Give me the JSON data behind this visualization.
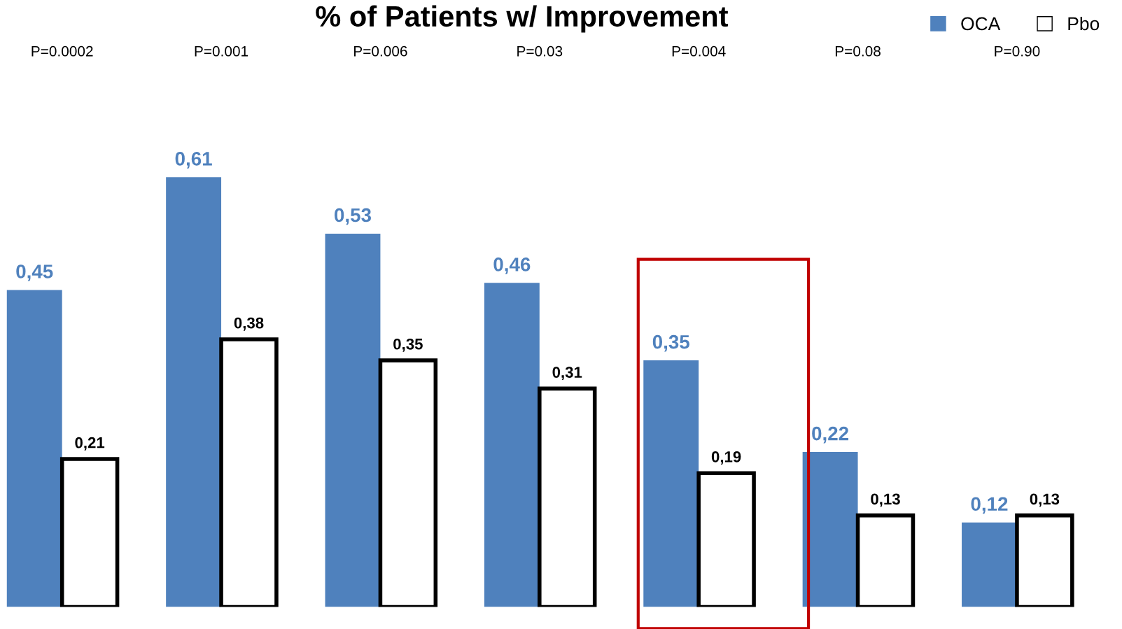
{
  "chart_data": {
    "type": "bar",
    "title": "% of Patients w/ Improvement",
    "categories": [
      null,
      null,
      null,
      null,
      null,
      null,
      null
    ],
    "series": [
      {
        "name": "OCA",
        "color": "#4f81bd",
        "values": [
          0.45,
          0.61,
          0.53,
          0.46,
          0.35,
          0.22,
          0.12
        ],
        "value_labels": [
          "0,45",
          "0,61",
          "0,53",
          "0,46",
          "0,35",
          "0,22",
          "0,12"
        ]
      },
      {
        "name": "Pbo",
        "color": "#ffffff",
        "values": [
          0.21,
          0.38,
          0.35,
          0.31,
          0.19,
          0.13,
          0.13
        ],
        "value_labels": [
          "0,21",
          "0,38",
          "0,35",
          "0,31",
          "0,19",
          "0,13",
          "0,13"
        ]
      }
    ],
    "annotations": [
      "P=0.0002",
      "P=0.001",
      "P=0.006",
      "P=0.03",
      "P=0.004",
      "P=0.08",
      "P=0.90"
    ],
    "legend": "top right",
    "tick_labels": false
  }
}
